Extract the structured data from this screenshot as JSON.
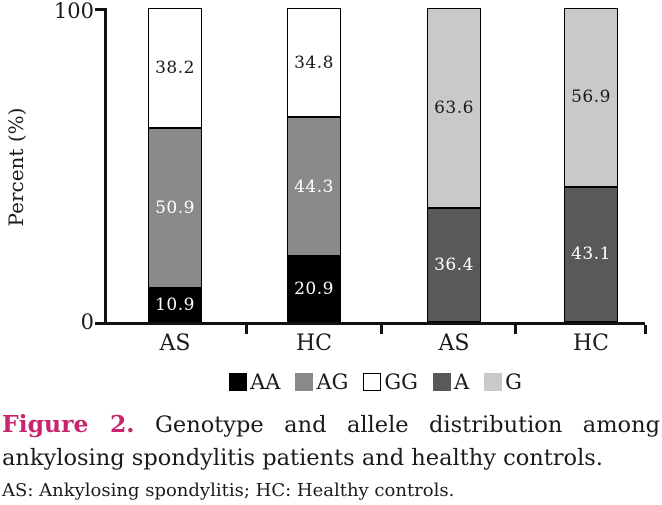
{
  "chart_data": {
    "type": "bar",
    "stacked": true,
    "orientation": "vertical",
    "ylabel": "Percent (%)",
    "ylim": [
      0,
      100
    ],
    "ytick_labels": [
      "0",
      "100"
    ],
    "grid": false,
    "categories": [
      "AS",
      "HC",
      "AS",
      "HC"
    ],
    "series": [
      {
        "name": "AA",
        "color": "#000000",
        "text_color": "#ffffff",
        "values": [
          10.9,
          20.9,
          null,
          null
        ]
      },
      {
        "name": "AG",
        "color": "#8a8a8a",
        "text_color": "#ffffff",
        "values": [
          50.9,
          44.3,
          null,
          null
        ]
      },
      {
        "name": "GG",
        "color": "#ffffff",
        "text_color": "#1a1a1a",
        "values": [
          38.2,
          34.8,
          null,
          null
        ]
      },
      {
        "name": "A",
        "color": "#595959",
        "text_color": "#ffffff",
        "values": [
          null,
          null,
          36.4,
          43.1
        ]
      },
      {
        "name": "G",
        "color": "#c9c9c9",
        "text_color": "#1a1a1a",
        "values": [
          null,
          null,
          63.6,
          56.9
        ]
      }
    ],
    "legend_position": "bottom",
    "legend_order": [
      "AA",
      "AG",
      "GG",
      "A",
      "G"
    ]
  },
  "caption": {
    "label": "Figure 2.",
    "label_color": "#c8256e",
    "line1_rest": "Genotype and allele distribution among",
    "line2": "ankylosing spondylitis patients and healthy controls.",
    "footnote": "AS: Ankylosing spondylitis; HC: Healthy controls."
  }
}
